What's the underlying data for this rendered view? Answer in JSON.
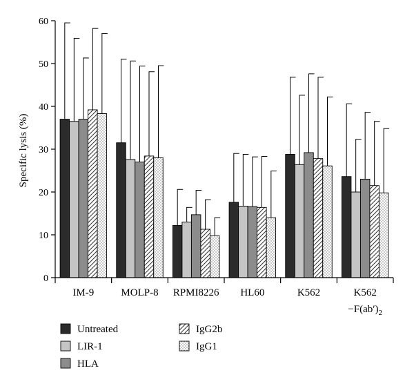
{
  "chart_data": {
    "type": "bar",
    "ylabel": "Specific lysis (%)",
    "ylim": [
      0,
      60
    ],
    "yticks": [
      0,
      10,
      20,
      30,
      40,
      50,
      60
    ],
    "grid": false,
    "legend_position": "bottom-left",
    "categories": [
      "IM-9",
      "MOLP-8",
      "RPMI8226",
      "HL60",
      "K562",
      "K562 −F(ab′)2"
    ],
    "series": [
      {
        "name": "Untreated",
        "pattern": "solid",
        "color": "#2b2b2b",
        "values": [
          37.0,
          31.5,
          12.2,
          17.6,
          28.8,
          23.6
        ],
        "error": [
          22.5,
          19.5,
          8.4,
          11.4,
          18.0,
          17.0
        ]
      },
      {
        "name": "LIR-1",
        "pattern": "solid",
        "color": "#c4c4c4",
        "values": [
          36.5,
          27.6,
          13.0,
          16.7,
          26.4,
          20.0
        ],
        "error": [
          19.4,
          23.0,
          3.4,
          12.1,
          16.2,
          12.3
        ]
      },
      {
        "name": "HLA",
        "pattern": "solid",
        "color": "#8c8c8c",
        "values": [
          37.0,
          27.0,
          14.7,
          16.6,
          29.2,
          23.0
        ],
        "error": [
          14.3,
          22.4,
          5.7,
          11.6,
          18.4,
          15.6
        ]
      },
      {
        "name": "IgG2b",
        "pattern": "hatch",
        "color": "#ffffff",
        "values": [
          39.2,
          28.4,
          11.3,
          16.4,
          27.8,
          21.5
        ],
        "error": [
          19.0,
          19.7,
          6.9,
          11.9,
          19.0,
          15.0
        ]
      },
      {
        "name": "IgG1",
        "pattern": "dots",
        "color": "#ffffff",
        "values": [
          38.3,
          28.0,
          9.8,
          14.0,
          26.1,
          19.8
        ],
        "error": [
          18.7,
          21.5,
          4.2,
          10.9,
          16.1,
          15.0
        ]
      }
    ]
  },
  "legend": {
    "items": [
      {
        "label": "Untreated",
        "pattern": "solid",
        "color": "#2b2b2b"
      },
      {
        "label": "LIR-1",
        "pattern": "solid",
        "color": "#c4c4c4"
      },
      {
        "label": "HLA",
        "pattern": "solid",
        "color": "#8c8c8c"
      },
      {
        "label": "IgG2b",
        "pattern": "hatch",
        "color": "#ffffff"
      },
      {
        "label": "IgG1",
        "pattern": "dots",
        "color": "#ffffff"
      }
    ]
  }
}
